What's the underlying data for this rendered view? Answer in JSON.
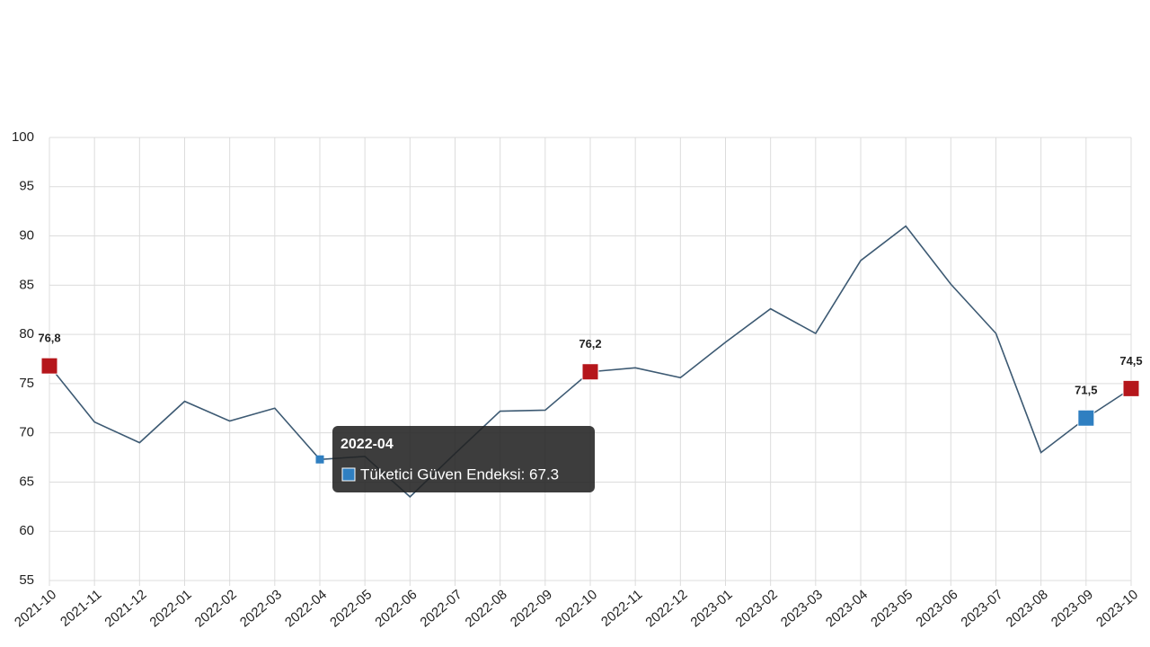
{
  "chart_data": {
    "type": "line",
    "categories": [
      "2021-10",
      "2021-11",
      "2021-12",
      "2022-01",
      "2022-02",
      "2022-03",
      "2022-04",
      "2022-05",
      "2022-06",
      "2022-07",
      "2022-08",
      "2022-09",
      "2022-10",
      "2022-11",
      "2022-12",
      "2023-01",
      "2023-02",
      "2023-03",
      "2023-04",
      "2023-05",
      "2023-06",
      "2023-07",
      "2023-08",
      "2023-09",
      "2023-10"
    ],
    "series": [
      {
        "name": "Tüketici Güven Endeksi",
        "color": "#3d5a73",
        "values": [
          76.8,
          71.1,
          69.0,
          73.2,
          71.2,
          72.5,
          67.3,
          67.6,
          63.5,
          67.9,
          72.2,
          72.3,
          76.2,
          76.6,
          75.6,
          79.2,
          82.6,
          80.1,
          87.5,
          91.0,
          85.1,
          80.1,
          68.0,
          71.5,
          74.5
        ],
        "value_labels": [
          "76,8",
          null,
          null,
          null,
          null,
          null,
          null,
          null,
          null,
          null,
          null,
          null,
          "76,2",
          null,
          null,
          null,
          null,
          null,
          null,
          null,
          null,
          null,
          null,
          "71,5",
          "74,5"
        ],
        "point_colors": [
          "#b5161b",
          null,
          null,
          null,
          null,
          null,
          "#2f7fc1",
          null,
          null,
          null,
          null,
          null,
          "#b5161b",
          null,
          null,
          null,
          null,
          null,
          null,
          null,
          null,
          null,
          null,
          "#2f7fc1",
          "#b5161b"
        ]
      }
    ],
    "ylim": [
      55,
      100
    ],
    "yticks": [
      55,
      60,
      65,
      70,
      75,
      80,
      85,
      90,
      95,
      100
    ],
    "grid": true,
    "tooltip": {
      "index": 6,
      "title": "2022-04",
      "text": "Tüketici Güven Endeksi: 67.3",
      "color": "#2f7fc1"
    }
  }
}
